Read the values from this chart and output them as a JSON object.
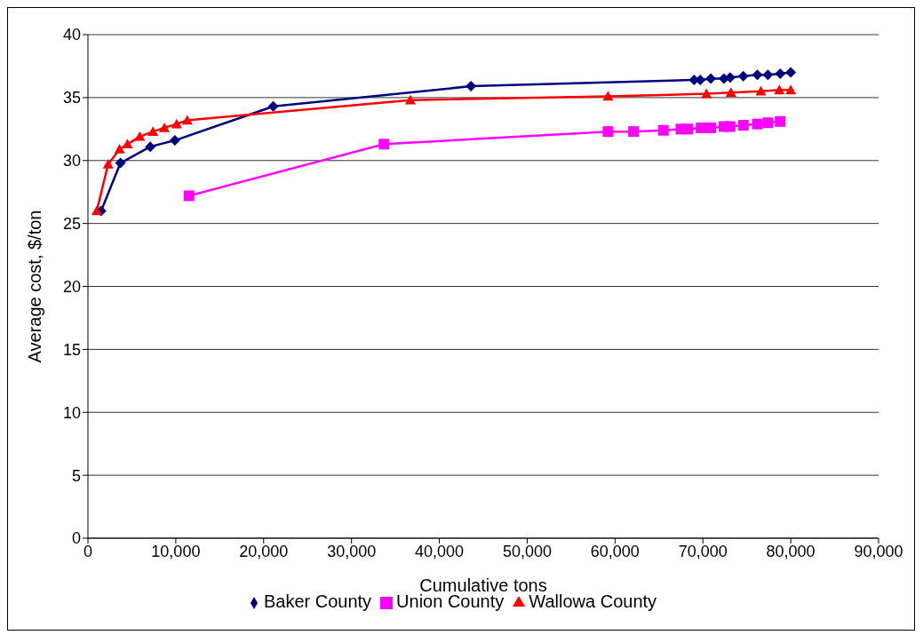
{
  "chart_data": {
    "type": "line",
    "xlabel": "Cumulative tons",
    "ylabel": "Average cost, $/ton",
    "xlim": [
      0,
      90000
    ],
    "xticks": [
      {
        "value": 0,
        "label": "0"
      },
      {
        "value": 10000,
        "label": "10,000"
      },
      {
        "value": 20000,
        "label": "20,000"
      },
      {
        "value": 30000,
        "label": "30,000"
      },
      {
        "value": 40000,
        "label": "40,000"
      },
      {
        "value": 50000,
        "label": "50,000"
      },
      {
        "value": 60000,
        "label": "60,000"
      },
      {
        "value": 70000,
        "label": "70,000"
      },
      {
        "value": 80000,
        "label": "80,000"
      },
      {
        "value": 90000,
        "label": "90,000"
      }
    ],
    "ylim": [
      0,
      40
    ],
    "yticks": [
      0,
      5,
      10,
      15,
      20,
      25,
      30,
      35,
      40
    ],
    "grid": "y",
    "legend": "bottom",
    "series": [
      {
        "name": "Baker County",
        "color": "#000080",
        "marker": "diamond",
        "x": [
          1500,
          3700,
          7100,
          9900,
          21100,
          43600,
          69000,
          69700,
          70900,
          72400,
          73100,
          74600,
          76200,
          77400,
          78800,
          80000
        ],
        "values": [
          26.0,
          29.8,
          31.1,
          31.6,
          34.3,
          35.9,
          36.4,
          36.4,
          36.5,
          36.5,
          36.6,
          36.7,
          36.8,
          36.8,
          36.9,
          37.0
        ]
      },
      {
        "name": "Union County",
        "color": "#ff00ff",
        "marker": "square",
        "x": [
          11500,
          33700,
          59200,
          62100,
          65500,
          67500,
          68300,
          69800,
          70900,
          72400,
          73100,
          74600,
          76200,
          77400,
          78800
        ],
        "values": [
          27.2,
          31.3,
          32.3,
          32.3,
          32.4,
          32.5,
          32.5,
          32.6,
          32.6,
          32.7,
          32.7,
          32.8,
          32.9,
          33.0,
          33.1
        ]
      },
      {
        "name": "Wallowa County",
        "color": "#ff0000",
        "marker": "triangle",
        "x": [
          1000,
          2300,
          3600,
          4500,
          5900,
          7400,
          8700,
          10100,
          11300,
          36700,
          59200,
          70400,
          73200,
          76600,
          78700,
          80000
        ],
        "values": [
          26.0,
          29.7,
          30.9,
          31.3,
          31.9,
          32.3,
          32.6,
          32.9,
          33.2,
          34.8,
          35.1,
          35.3,
          35.4,
          35.5,
          35.6,
          35.6
        ]
      }
    ]
  }
}
